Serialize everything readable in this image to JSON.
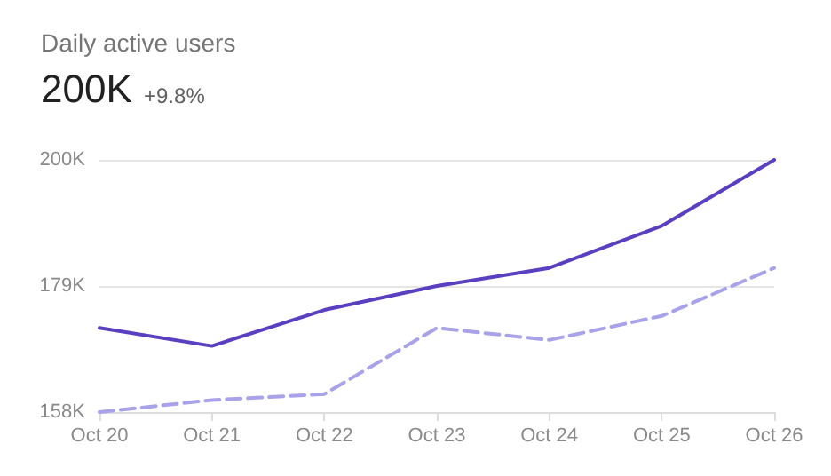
{
  "chart_data": {
    "type": "line",
    "title": "Daily active users",
    "subtitle": "200K",
    "annotations": [
      "+9.8%"
    ],
    "categories": [
      "Oct 20",
      "Oct 21",
      "Oct 22",
      "Oct 23",
      "Oct 24",
      "Oct 25",
      "Oct 26"
    ],
    "series": [
      {
        "color": "#5a3fc0",
        "line_style": "solid",
        "values": [
          172,
          169,
          175,
          179,
          182,
          189,
          200
        ]
      },
      {
        "color": "#a8a2e8",
        "line_style": "dashed",
        "values": [
          158,
          160,
          161,
          172,
          170,
          174,
          182
        ]
      }
    ],
    "ylim": [
      158,
      200
    ],
    "yticks": [
      {
        "value": 158,
        "label": "158K"
      },
      {
        "value": 179,
        "label": "179K"
      },
      {
        "value": 200,
        "label": "200K"
      }
    ],
    "grid": "y",
    "marker": "none"
  }
}
